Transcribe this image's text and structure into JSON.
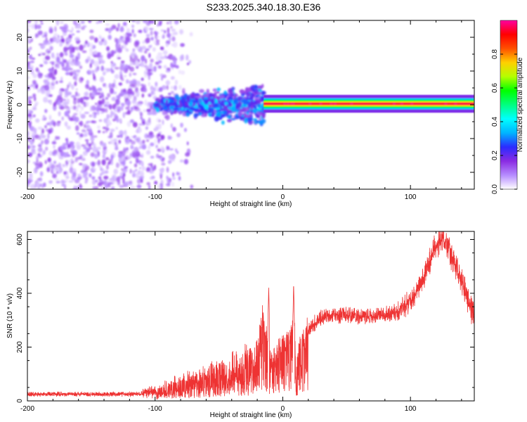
{
  "figure_title": "S233.2025.340.18.30.E36",
  "chart_data": [
    {
      "type": "heatmap",
      "name": "spectrogram",
      "xlabel": "Height of straight line (km)",
      "ylabel": "Frequency (Hz)",
      "xlim": [
        -200,
        150
      ],
      "ylim": [
        -25,
        25
      ],
      "x_ticks": [
        -200,
        -100,
        0,
        100
      ],
      "x_tick_labels": [
        "-200",
        "-100",
        "0",
        "100"
      ],
      "y_ticks": [
        -20,
        -10,
        0,
        10,
        20
      ],
      "y_tick_labels": [
        "-20",
        "-10",
        "0",
        "10",
        "20"
      ],
      "colorbar": {
        "label": "Normalized spectral amplitude",
        "range": [
          0.0,
          1.0
        ],
        "ticks": [
          0.0,
          0.2,
          0.4,
          0.6,
          0.8
        ],
        "tick_labels": [
          "0.0",
          "0.2",
          "0.4",
          "0.6",
          "0.8"
        ],
        "colors": [
          "#ffffff",
          "#b68cff",
          "#8a2be2",
          "#2b2bff",
          "#00b4ff",
          "#00ffff",
          "#00ff80",
          "#00ff00",
          "#b4ff00",
          "#ffd000",
          "#ff5000",
          "#ff0000",
          "#ff00a0"
        ]
      },
      "regions": [
        {
          "x_range": [
            -200,
            -100
          ],
          "freq_range": [
            -25,
            25
          ],
          "amplitude": [
            0.02,
            0.15
          ],
          "description": "broadband noise"
        },
        {
          "x_range": [
            -100,
            -15
          ],
          "freq_range": [
            -10,
            7
          ],
          "amplitude": [
            0.1,
            0.35
          ],
          "description": "widening signal cloud"
        },
        {
          "x_range": [
            -15,
            150
          ],
          "freq_center": 0.3,
          "freq_halfwidth": 1.2,
          "amplitude": [
            0.8,
            1.0
          ],
          "description": "narrow carrier line"
        }
      ]
    },
    {
      "type": "line",
      "name": "snr",
      "xlabel": "Height of straight line (km)",
      "ylabel": "SNR (10 * v/v)",
      "xlim": [
        -200,
        150
      ],
      "ylim": [
        0,
        630
      ],
      "x_ticks": [
        -200,
        -100,
        0,
        100
      ],
      "x_tick_labels": [
        "-200",
        "-100",
        "0",
        "100"
      ],
      "y_ticks": [
        0,
        200,
        400,
        600
      ],
      "y_tick_labels": [
        "0",
        "200",
        "400",
        "600"
      ],
      "color": "#ee3333",
      "series": [
        {
          "name": "SNR",
          "x": [
            -200,
            -180,
            -160,
            -140,
            -120,
            -110,
            -100,
            -90,
            -80,
            -70,
            -60,
            -50,
            -40,
            -30,
            -20,
            -15,
            -10,
            -5,
            0,
            5,
            9,
            10,
            15,
            20,
            30,
            40,
            50,
            60,
            70,
            80,
            90,
            100,
            110,
            118,
            125,
            130,
            140,
            150
          ],
          "y": [
            25,
            25,
            25,
            25,
            25,
            27,
            38,
            50,
            60,
            75,
            85,
            100,
            115,
            130,
            145,
            300,
            140,
            165,
            210,
            230,
            300,
            110,
            225,
            265,
            310,
            320,
            320,
            315,
            315,
            320,
            330,
            370,
            450,
            560,
            605,
            560,
            450,
            310
          ]
        }
      ]
    }
  ]
}
